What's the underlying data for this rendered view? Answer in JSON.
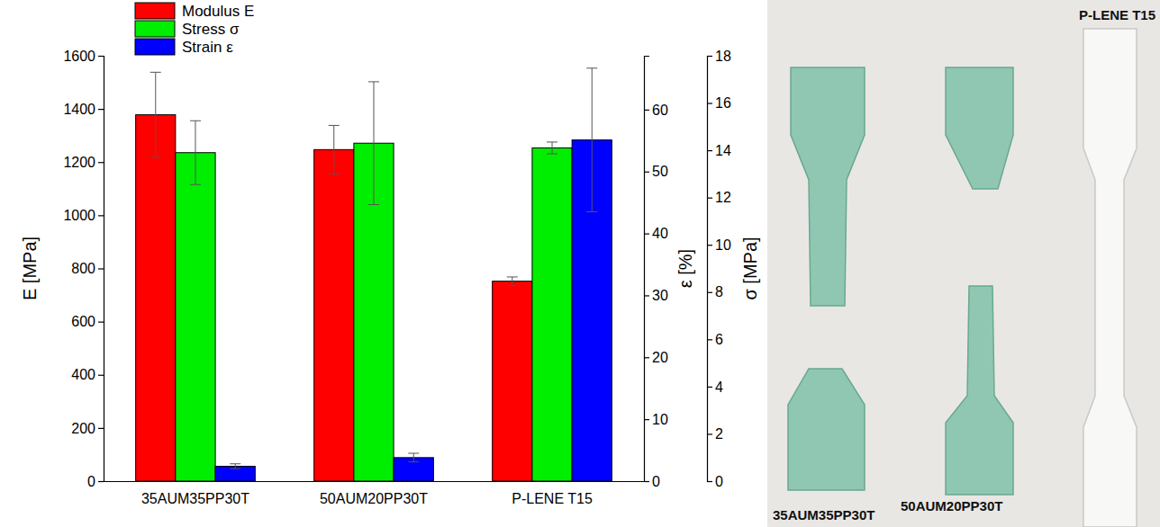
{
  "chart_data": {
    "type": "bar",
    "categories": [
      "35AUM35PP30T",
      "50AUM20PP30T",
      "P-LENE T15"
    ],
    "series": [
      {
        "name": "Modulus E",
        "color": "#ff0000",
        "values": [
          1378,
          1247,
          752
        ],
        "errors": [
          160,
          91,
          16
        ]
      },
      {
        "name": "Stress σ",
        "color": "#00ee00",
        "axis": "y3",
        "values": [
          13.9,
          14.3,
          14.1
        ],
        "errors": [
          1.35,
          2.6,
          0.25
        ]
      },
      {
        "name": "Strain ε",
        "color": "#0000ff",
        "axis": "y2",
        "values": [
          2.4,
          3.8,
          55.1
        ],
        "errors": [
          0.4,
          0.7,
          11.6
        ]
      }
    ],
    "y_label": "E [MPa]",
    "ylim": [
      0,
      1600
    ],
    "yticks": [
      0,
      200,
      400,
      600,
      800,
      1000,
      1200,
      1400,
      1600
    ],
    "y2_label": "ε [%]",
    "y2lim": [
      0,
      68.7
    ],
    "y2ticks": [
      0,
      10,
      20,
      30,
      40,
      50,
      60
    ],
    "y3_label": "σ [MPa]",
    "y3lim": [
      0,
      18
    ],
    "y3ticks": [
      0,
      2,
      4,
      6,
      8,
      10,
      12,
      14,
      16,
      18
    ],
    "legend": "top-left"
  },
  "photo": {
    "labels": [
      "P-LENE T15",
      "35AUM35PP30T",
      "50AUM20PP30T"
    ]
  }
}
